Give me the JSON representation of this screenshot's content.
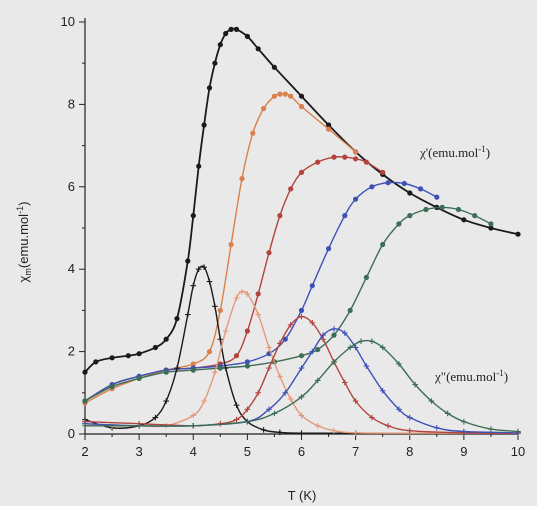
{
  "chart_data": {
    "type": "line",
    "title": "",
    "xlabel": "T (K)",
    "ylabel": "χm(emu.mol-1)",
    "ylabel_parts": {
      "chi": "χ",
      "sub": "m",
      "main": "(emu.mol",
      "sup": "-1",
      "close": ")"
    },
    "xlim": [
      2,
      10
    ],
    "ylim": [
      0,
      10
    ],
    "x_ticks": [
      2,
      3,
      4,
      5,
      6,
      7,
      8,
      9,
      10
    ],
    "y_ticks": [
      0,
      2,
      4,
      6,
      8,
      10
    ],
    "grid": false,
    "annotations": [
      {
        "text": "χ'(emu.mol-1)",
        "parts": {
          "main": "χ'(emu.mol",
          "sup": "-1",
          "close": ")"
        }
      },
      {
        "text": "χ\"(emu.mol-1)",
        "parts": {
          "main": "χ\"(emu.mol",
          "sup": "-1",
          "close": ")"
        }
      }
    ],
    "series": [
      {
        "kind": "chi_prime",
        "color": "#1a1a1a",
        "marker": "dot",
        "x": [
          2.0,
          2.2,
          2.5,
          2.8,
          3.0,
          3.3,
          3.5,
          3.7,
          3.9,
          4.0,
          4.1,
          4.2,
          4.3,
          4.4,
          4.5,
          4.6,
          4.7,
          4.8,
          5.0,
          5.2,
          5.5,
          6.0,
          6.5,
          7.0,
          7.5,
          8.0,
          8.5,
          9.0,
          9.5,
          10.0
        ],
        "y": [
          1.5,
          1.75,
          1.85,
          1.9,
          1.95,
          2.1,
          2.3,
          2.8,
          4.2,
          5.3,
          6.5,
          7.5,
          8.4,
          9.0,
          9.45,
          9.72,
          9.82,
          9.82,
          9.65,
          9.35,
          8.9,
          8.2,
          7.5,
          6.85,
          6.3,
          5.85,
          5.5,
          5.2,
          5.0,
          4.85
        ]
      },
      {
        "kind": "chi_prime",
        "color": "#d9804d",
        "marker": "dot",
        "x": [
          2.0,
          2.5,
          3.0,
          3.5,
          4.0,
          4.3,
          4.5,
          4.7,
          4.9,
          5.1,
          5.3,
          5.5,
          5.6,
          5.7,
          5.8,
          6.0,
          6.5,
          7.0
        ],
        "y": [
          0.75,
          1.1,
          1.35,
          1.55,
          1.7,
          2.0,
          3.0,
          4.6,
          6.2,
          7.3,
          7.9,
          8.2,
          8.25,
          8.25,
          8.2,
          7.95,
          7.4,
          6.85
        ]
      },
      {
        "kind": "chi_prime",
        "color": "#b3433d",
        "marker": "dot",
        "x": [
          2.0,
          2.5,
          3.0,
          3.5,
          4.0,
          4.5,
          4.8,
          5.0,
          5.2,
          5.4,
          5.6,
          5.8,
          6.0,
          6.3,
          6.6,
          6.8,
          7.0,
          7.2,
          7.5
        ],
        "y": [
          0.8,
          1.2,
          1.4,
          1.55,
          1.6,
          1.7,
          1.9,
          2.5,
          3.4,
          4.4,
          5.3,
          5.95,
          6.35,
          6.6,
          6.72,
          6.72,
          6.68,
          6.6,
          6.35
        ]
      },
      {
        "kind": "chi_prime",
        "color": "#3e52b5",
        "marker": "dot",
        "x": [
          2.0,
          2.5,
          3.0,
          3.5,
          4.0,
          4.5,
          5.0,
          5.4,
          5.7,
          6.0,
          6.2,
          6.5,
          6.8,
          7.0,
          7.3,
          7.6,
          7.9,
          8.2,
          8.5
        ],
        "y": [
          0.8,
          1.2,
          1.4,
          1.55,
          1.6,
          1.65,
          1.75,
          1.95,
          2.3,
          3.0,
          3.6,
          4.5,
          5.3,
          5.7,
          6.0,
          6.1,
          6.08,
          5.95,
          5.75
        ]
      },
      {
        "kind": "chi_prime",
        "color": "#3c6e55",
        "marker": "dot",
        "x": [
          2.0,
          2.5,
          3.0,
          3.5,
          4.0,
          4.5,
          5.0,
          5.5,
          6.0,
          6.3,
          6.6,
          6.9,
          7.2,
          7.5,
          7.8,
          8.0,
          8.3,
          8.6,
          8.9,
          9.2,
          9.5
        ],
        "y": [
          0.8,
          1.15,
          1.35,
          1.5,
          1.55,
          1.6,
          1.65,
          1.75,
          1.9,
          2.05,
          2.4,
          3.0,
          3.8,
          4.6,
          5.1,
          5.3,
          5.45,
          5.5,
          5.45,
          5.3,
          5.1
        ]
      },
      {
        "kind": "chi_double",
        "color": "#1a1a1a",
        "marker": "plus",
        "x": [
          2.0,
          2.5,
          3.0,
          3.3,
          3.5,
          3.7,
          3.9,
          4.0,
          4.1,
          4.2,
          4.3,
          4.4,
          4.5,
          4.6,
          4.8,
          5.0,
          5.3,
          5.6,
          6.0,
          7.0,
          8.0,
          10.0
        ],
        "y": [
          0.35,
          0.15,
          0.2,
          0.4,
          0.8,
          1.6,
          2.9,
          3.6,
          4.0,
          4.05,
          3.7,
          3.1,
          2.3,
          1.6,
          0.7,
          0.3,
          0.1,
          0.04,
          0.02,
          0.02,
          0.02,
          0.02
        ]
      },
      {
        "kind": "chi_double",
        "color": "#e49a7a",
        "marker": "plus",
        "x": [
          2.0,
          2.5,
          3.0,
          3.5,
          4.0,
          4.2,
          4.4,
          4.6,
          4.8,
          4.9,
          5.0,
          5.2,
          5.4,
          5.6,
          5.8,
          6.0,
          6.3,
          6.6,
          7.0,
          8.0,
          10.0
        ],
        "y": [
          0.25,
          0.2,
          0.2,
          0.2,
          0.45,
          0.8,
          1.5,
          2.5,
          3.3,
          3.45,
          3.4,
          2.9,
          2.1,
          1.4,
          0.85,
          0.45,
          0.2,
          0.08,
          0.03,
          0.02,
          0.02
        ]
      },
      {
        "kind": "chi_double",
        "color": "#b3433d",
        "marker": "plus",
        "x": [
          2.0,
          3.0,
          4.0,
          4.5,
          4.8,
          5.0,
          5.2,
          5.4,
          5.6,
          5.8,
          6.0,
          6.2,
          6.4,
          6.6,
          6.8,
          7.0,
          7.3,
          7.6,
          8.0,
          9.0,
          10.0
        ],
        "y": [
          0.3,
          0.25,
          0.2,
          0.25,
          0.35,
          0.6,
          1.0,
          1.6,
          2.2,
          2.65,
          2.85,
          2.7,
          2.3,
          1.75,
          1.25,
          0.8,
          0.4,
          0.2,
          0.08,
          0.03,
          0.02
        ]
      },
      {
        "kind": "chi_double",
        "color": "#3e52b5",
        "marker": "plus",
        "x": [
          2.0,
          3.0,
          4.0,
          5.0,
          5.4,
          5.7,
          6.0,
          6.2,
          6.4,
          6.6,
          6.8,
          7.0,
          7.2,
          7.5,
          7.8,
          8.0,
          8.5,
          9.0,
          10.0
        ],
        "y": [
          0.25,
          0.2,
          0.2,
          0.3,
          0.6,
          1.0,
          1.6,
          2.0,
          2.4,
          2.55,
          2.45,
          2.1,
          1.65,
          1.05,
          0.6,
          0.4,
          0.15,
          0.06,
          0.03
        ]
      },
      {
        "kind": "chi_double",
        "color": "#3c6e55",
        "marker": "plus",
        "x": [
          2.0,
          3.0,
          4.0,
          5.0,
          5.5,
          6.0,
          6.3,
          6.6,
          6.9,
          7.1,
          7.3,
          7.5,
          7.8,
          8.1,
          8.4,
          8.7,
          9.0,
          9.5,
          10.0
        ],
        "y": [
          0.2,
          0.2,
          0.2,
          0.3,
          0.5,
          0.9,
          1.3,
          1.75,
          2.1,
          2.25,
          2.25,
          2.1,
          1.7,
          1.2,
          0.8,
          0.5,
          0.3,
          0.12,
          0.06
        ]
      }
    ]
  }
}
